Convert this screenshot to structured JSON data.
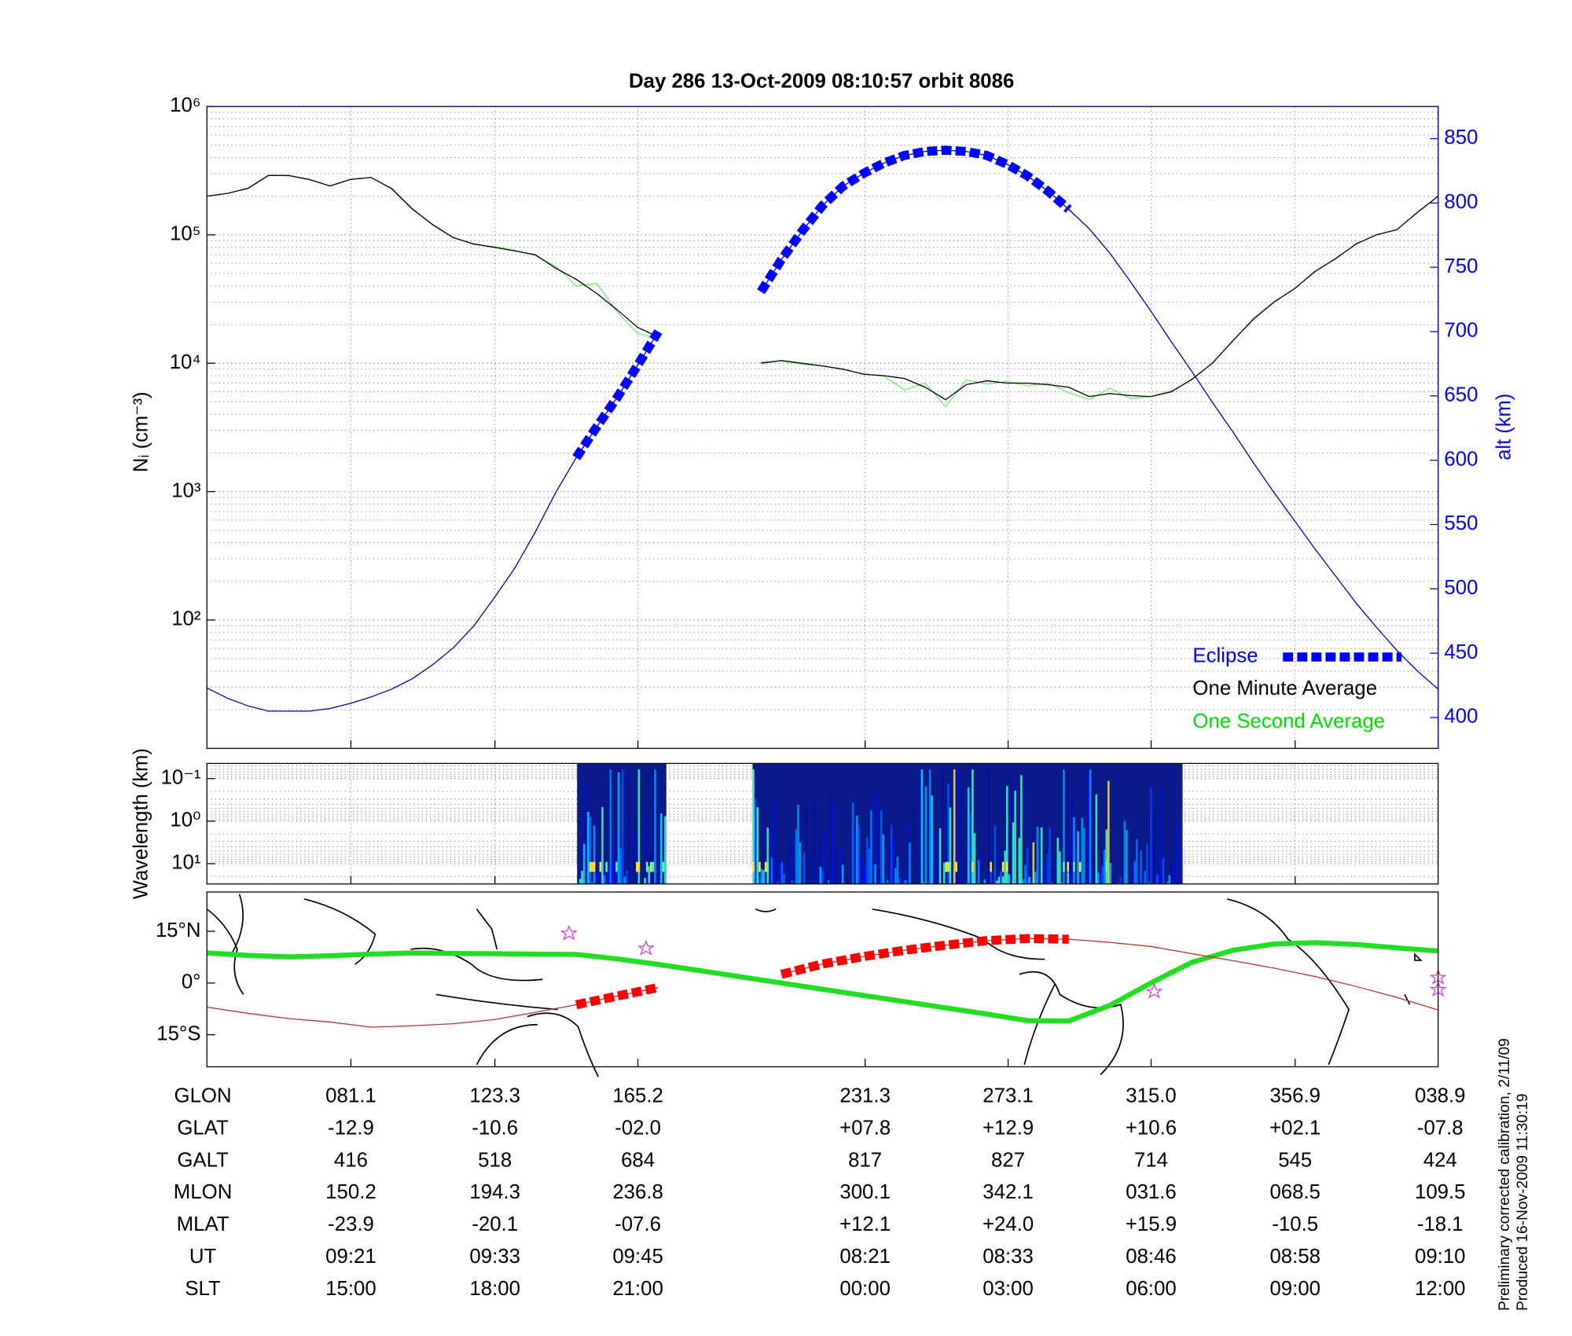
{
  "chart_data": [
    {
      "type": "line",
      "title": "Day 286  13-Oct-2009 08:10:57   orbit 8086",
      "ylabel": "Nᵢ (cm⁻³)",
      "y2label": "alt (km)",
      "log": true,
      "grid": true,
      "legend": "lower right",
      "ylim": [
        10,
        1000000
      ],
      "yticks": [
        {
          "value": 100,
          "label": "10²"
        },
        {
          "value": 1000,
          "label": "10³"
        },
        {
          "value": 10000,
          "label": "10⁴"
        },
        {
          "value": 100000,
          "label": "10⁵"
        },
        {
          "value": 1000000,
          "label": "10⁶"
        }
      ],
      "y2lim": [
        376,
        875
      ],
      "y2ticks": [
        400,
        450,
        500,
        550,
        600,
        650,
        700,
        750,
        800,
        850
      ],
      "series": [
        {
          "name": "Eclipse",
          "color": "#0000ff",
          "axis": "y2",
          "style": "dashed",
          "values": [
            null,
            null,
            null,
            null,
            null,
            null,
            null,
            null,
            null,
            null,
            null,
            null,
            null,
            null,
            null,
            null,
            null,
            null,
            602,
            626,
            649,
            674,
            700,
            null,
            null,
            null,
            null,
            731,
            756,
            778,
            798,
            813,
            823,
            831,
            837,
            840,
            841,
            840,
            837,
            830,
            821,
            809,
            795,
            null,
            null,
            null,
            null,
            null,
            null,
            null,
            null,
            null,
            null,
            null,
            null,
            null,
            null,
            null,
            null,
            null,
            null
          ]
        },
        {
          "name": "One Minute Average",
          "color": "#000000",
          "values": [
            200000,
            210000,
            230000,
            290000,
            290000,
            270000,
            240000,
            270000,
            280000,
            230000,
            160000,
            120000,
            95000,
            85000,
            80000,
            75000,
            70000,
            55000,
            45000,
            35000,
            26000,
            19000,
            16000,
            null,
            null,
            null,
            null,
            10000,
            10500,
            10000,
            9500,
            9000,
            8200,
            8000,
            7600,
            6500,
            5200,
            6800,
            7300,
            7000,
            7000,
            6800,
            6500,
            5500,
            5800,
            5600,
            5500,
            6000,
            7500,
            10000,
            15000,
            22000,
            30000,
            38000,
            52000,
            65000,
            85000,
            100000,
            110000,
            150000,
            200000
          ]
        },
        {
          "name": "One Second Average",
          "color": "#00e000",
          "values": [
            200000,
            210000,
            232000,
            292000,
            288000,
            268000,
            242000,
            272000,
            281000,
            228000,
            158000,
            121000,
            96000,
            84000,
            81000,
            76000,
            69000,
            57000,
            40000,
            42000,
            25000,
            17000,
            15500,
            null,
            null,
            null,
            null,
            10200,
            10400,
            9800,
            9600,
            8900,
            8300,
            7900,
            6200,
            7000,
            4600,
            7400,
            6900,
            7200,
            6700,
            7000,
            5900,
            5200,
            6400,
            5300,
            5500,
            6100,
            7400,
            10100,
            14800,
            22500,
            29500,
            38500,
            51000,
            66000,
            84000,
            101000,
            109000,
            152000,
            199000
          ]
        },
        {
          "color": "#0000aa",
          "axis": "y2",
          "values": [
            423,
            415,
            409,
            405,
            405,
            405,
            407,
            411,
            416,
            422,
            430,
            441,
            454,
            471,
            493,
            516,
            544,
            575,
            602,
            626,
            649,
            674,
            700,
            null,
            null,
            null,
            null,
            731,
            756,
            778,
            798,
            813,
            823,
            831,
            837,
            840,
            841,
            840,
            837,
            830,
            821,
            809,
            795,
            780,
            761,
            739,
            716,
            692,
            669,
            645,
            622,
            598,
            575,
            553,
            531,
            510,
            489,
            470,
            452,
            436,
            422
          ]
        }
      ]
    },
    {
      "type": "spectrogram",
      "ylabel": "Wavelength (km)",
      "log": true,
      "inverted": true,
      "grid": true,
      "ylim": [
        0.044,
        30
      ],
      "yticks": [
        {
          "value": 0.1,
          "label": "10⁻¹"
        },
        {
          "value": 1,
          "label": "10⁰"
        },
        {
          "value": 10,
          "label": "10¹"
        }
      ]
    },
    {
      "type": "map",
      "ylim": [
        -24.3,
        26.4
      ],
      "yticks": [
        {
          "value": 15,
          "label": "15°N"
        },
        {
          "value": 0,
          "label": "0°"
        },
        {
          "value": -15,
          "label": "15°S"
        }
      ],
      "series": [
        {
          "color": "#22dd22",
          "width": 5,
          "values": [
            8.7,
            8.0,
            7.6,
            7.9,
            8.4,
            8.7,
            8.6,
            8.5,
            8.4,
            8.3,
            7.0,
            5.4,
            3.6,
            1.8,
            0,
            -1.8,
            -3.6,
            -5.4,
            -7.2,
            -9.0,
            -10.9,
            -11.0,
            -6.5,
            0,
            6.0,
            9.5,
            11.3,
            11.7,
            11.2,
            10.2,
            9.3
          ]
        },
        {
          "color": "#bb3333",
          "width": 1,
          "values": [
            -7.0,
            -8.8,
            -10.3,
            -11.3,
            -12.8,
            -12.4,
            -11.8,
            -10.6,
            -8.5,
            -6.3,
            -3.8,
            -1.3,
            null,
            null,
            2.5,
            5.5,
            7.7,
            9.5,
            11.0,
            12.3,
            12.9,
            12.7,
            11.8,
            10.6,
            8.5,
            6.5,
            4.3,
            1.9,
            -1.0,
            -4.2,
            -7.8
          ]
        },
        {
          "color": "#ff0000",
          "width": 9,
          "style": "dashed",
          "values": [
            null,
            null,
            null,
            null,
            null,
            null,
            null,
            null,
            null,
            -6.3,
            -3.8,
            -1.3,
            null,
            null,
            2.5,
            5.5,
            7.7,
            9.5,
            11.0,
            12.3,
            12.9,
            12.7,
            null,
            null,
            null,
            null,
            null,
            null,
            null,
            null,
            null
          ]
        }
      ]
    }
  ],
  "table": {
    "rows": [
      {
        "label": "GLON",
        "values": [
          "081.1",
          "123.3",
          "165.2",
          "231.3",
          "273.1",
          "315.0",
          "356.9",
          "038.9"
        ]
      },
      {
        "label": "GLAT",
        "values": [
          "-12.9",
          "-10.6",
          "-02.0",
          "+07.8",
          "+12.9",
          "+10.6",
          "+02.1",
          "-07.8"
        ]
      },
      {
        "label": "GALT",
        "values": [
          "416",
          "518",
          "684",
          "817",
          "827",
          "714",
          "545",
          "424"
        ]
      },
      {
        "label": "MLON",
        "values": [
          "150.2",
          "194.3",
          "236.8",
          "300.1",
          "342.1",
          "031.6",
          "068.5",
          "109.5"
        ]
      },
      {
        "label": "MLAT",
        "values": [
          "-23.9",
          "-20.1",
          "-07.6",
          "+12.1",
          "+24.0",
          "+15.9",
          "-10.5",
          "-18.1"
        ]
      },
      {
        "label": "UT",
        "values": [
          "09:21",
          "09:33",
          "09:45",
          "08:21",
          "08:33",
          "08:46",
          "08:58",
          "09:10"
        ]
      },
      {
        "label": "SLT",
        "values": [
          "15:00",
          "18:00",
          "21:00",
          "00:00",
          "03:00",
          "06:00",
          "09:00",
          "12:00"
        ]
      }
    ]
  },
  "notes": [
    "Preliminary corrected calibration, 2/11/09",
    "Produced 16-Nov-2009 11:30:19"
  ]
}
